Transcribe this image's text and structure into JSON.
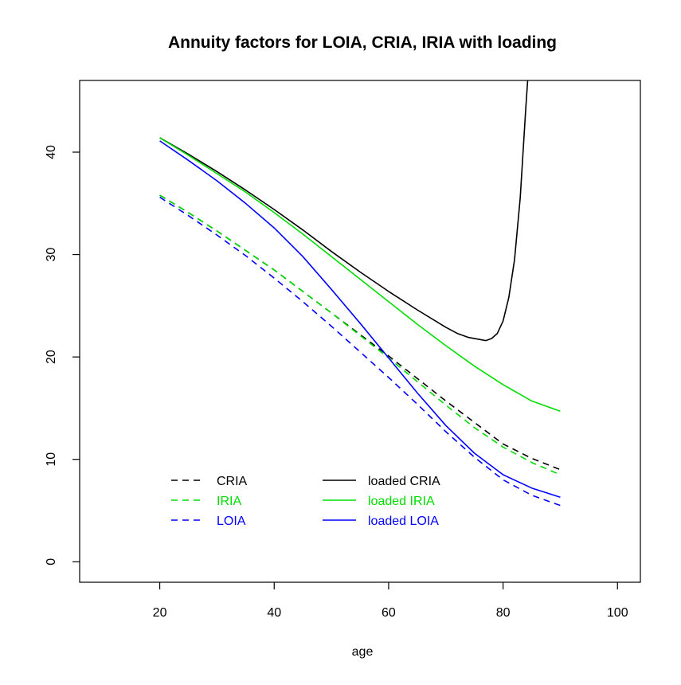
{
  "chart_data": {
    "type": "line",
    "title": "Annuity factors for LOIA, CRIA, IRIA with loading",
    "xlabel": "age",
    "ylabel": "",
    "xlim": [
      6,
      104
    ],
    "ylim": [
      -2,
      47
    ],
    "xticks": [
      20,
      40,
      60,
      80,
      100
    ],
    "yticks": [
      0,
      10,
      20,
      30,
      40
    ],
    "grid": false,
    "legend_position": "bottom-left",
    "series": [
      {
        "name": "CRIA",
        "color": "#000000",
        "dash": "dashed",
        "x": [
          20,
          25,
          30,
          35,
          40,
          45,
          50,
          55,
          60,
          65,
          70,
          75,
          80,
          85,
          90
        ],
        "y": [
          35.8,
          34.1,
          32.3,
          30.4,
          28.5,
          26.4,
          24.3,
          22.2,
          20.1,
          17.9,
          15.7,
          13.6,
          11.5,
          10.1,
          9.0
        ]
      },
      {
        "name": "IRIA",
        "color": "#00dd00",
        "dash": "dashed",
        "x": [
          20,
          25,
          30,
          35,
          40,
          45,
          50,
          55,
          60,
          65,
          70,
          75,
          80,
          85,
          90
        ],
        "y": [
          35.8,
          34.1,
          32.3,
          30.4,
          28.5,
          26.4,
          24.3,
          22.1,
          19.9,
          17.6,
          15.3,
          13.1,
          11.2,
          9.7,
          8.5
        ]
      },
      {
        "name": "LOIA",
        "color": "#0000ff",
        "dash": "dashed",
        "x": [
          20,
          25,
          30,
          35,
          40,
          45,
          50,
          55,
          60,
          65,
          70,
          75,
          80,
          85,
          90
        ],
        "y": [
          35.6,
          33.8,
          31.9,
          29.9,
          27.7,
          25.4,
          23.0,
          20.5,
          18.0,
          15.4,
          12.7,
          10.2,
          8.0,
          6.5,
          5.5
        ]
      },
      {
        "name": "loaded CRIA",
        "color": "#000000",
        "dash": "solid",
        "x": [
          20,
          25,
          30,
          35,
          40,
          45,
          50,
          55,
          60,
          65,
          70,
          72,
          74,
          76,
          77,
          78,
          79,
          80,
          81,
          82,
          83,
          83.5,
          84,
          84.3
        ],
        "y": [
          41.4,
          39.8,
          38.1,
          36.3,
          34.4,
          32.4,
          30.3,
          28.3,
          26.4,
          24.6,
          22.9,
          22.3,
          21.9,
          21.7,
          21.6,
          21.8,
          22.3,
          23.5,
          25.8,
          29.5,
          35.5,
          40.0,
          44.5,
          47.0
        ]
      },
      {
        "name": "loaded IRIA",
        "color": "#00dd00",
        "dash": "solid",
        "x": [
          20,
          25,
          30,
          35,
          40,
          45,
          50,
          55,
          60,
          65,
          70,
          75,
          80,
          85,
          90
        ],
        "y": [
          41.4,
          39.7,
          37.9,
          36.1,
          34.1,
          32.0,
          29.8,
          27.6,
          25.4,
          23.2,
          21.1,
          19.1,
          17.3,
          15.7,
          14.7
        ]
      },
      {
        "name": "loaded LOIA",
        "color": "#0000ff",
        "dash": "solid",
        "x": [
          20,
          25,
          30,
          35,
          40,
          45,
          50,
          55,
          60,
          65,
          70,
          75,
          80,
          85,
          90
        ],
        "y": [
          41.1,
          39.2,
          37.2,
          35.0,
          32.6,
          29.8,
          26.6,
          23.3,
          19.9,
          16.5,
          13.3,
          10.6,
          8.5,
          7.2,
          6.3
        ]
      }
    ]
  }
}
